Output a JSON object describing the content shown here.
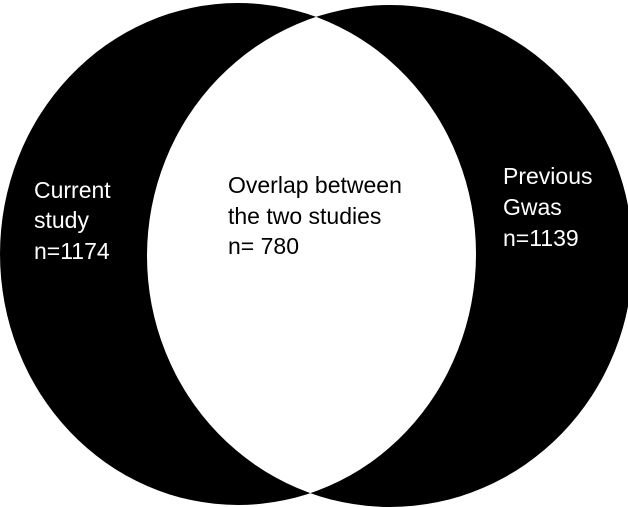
{
  "diagram": {
    "type": "venn",
    "colors": {
      "set_fill": "#000000",
      "overlap_fill": "#ffffff",
      "background": "#ffffff"
    },
    "left_set": {
      "line1": "Current",
      "line2": "study",
      "line3": "n=1174"
    },
    "right_set": {
      "line1": "Previous",
      "line2": "Gwas",
      "line3": "n=1139"
    },
    "overlap": {
      "line1": "Overlap between",
      "line2": "the two studies",
      "line3": "n= 780"
    }
  }
}
